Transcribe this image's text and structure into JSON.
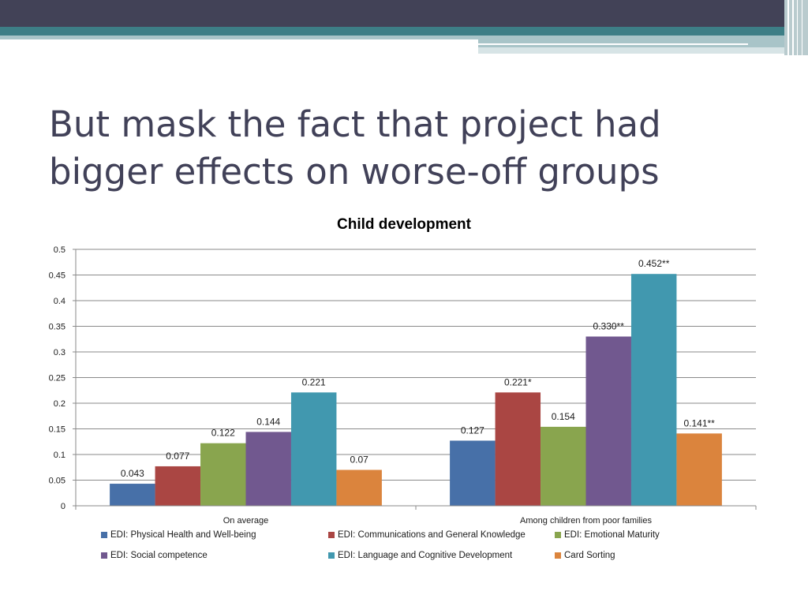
{
  "slide": {
    "title": "But mask the fact that project had bigger effects on worse-off groups"
  },
  "chart_data": {
    "type": "bar",
    "title": "Child development",
    "xlabel": "",
    "ylabel": "",
    "ylim": [
      0,
      0.5
    ],
    "yticks": [
      "0",
      "0.05",
      "0.1",
      "0.15",
      "0.2",
      "0.25",
      "0.3",
      "0.35",
      "0.4",
      "0.45",
      "0.5"
    ],
    "grid": true,
    "legend_position": "bottom",
    "categories": [
      "On average",
      "Among children from poor families"
    ],
    "series": [
      {
        "name": "EDI: Physical Health and Well-being",
        "color": "#4770A8",
        "values": [
          0.043,
          0.127
        ],
        "labels": [
          "0.043",
          "0.127"
        ]
      },
      {
        "name": "EDI: Communications and General Knowledge",
        "color": "#AA4643",
        "values": [
          0.077,
          0.221
        ],
        "labels": [
          "0.077",
          "0.221*"
        ]
      },
      {
        "name": "EDI: Emotional Maturity",
        "color": "#89A54E",
        "values": [
          0.122,
          0.154
        ],
        "labels": [
          "0.122",
          "0.154"
        ]
      },
      {
        "name": "EDI: Social competence",
        "color": "#71588F",
        "values": [
          0.144,
          0.33
        ],
        "labels": [
          "0.144",
          "0.330**"
        ]
      },
      {
        "name": "EDI: Language and Cognitive Development",
        "color": "#4198AF",
        "values": [
          0.221,
          0.452
        ],
        "labels": [
          "0.221",
          "0.452**"
        ]
      },
      {
        "name": "Card Sorting",
        "color": "#DB843D",
        "values": [
          0.07,
          0.141
        ],
        "labels": [
          "0.07",
          "0.141**"
        ]
      }
    ]
  }
}
